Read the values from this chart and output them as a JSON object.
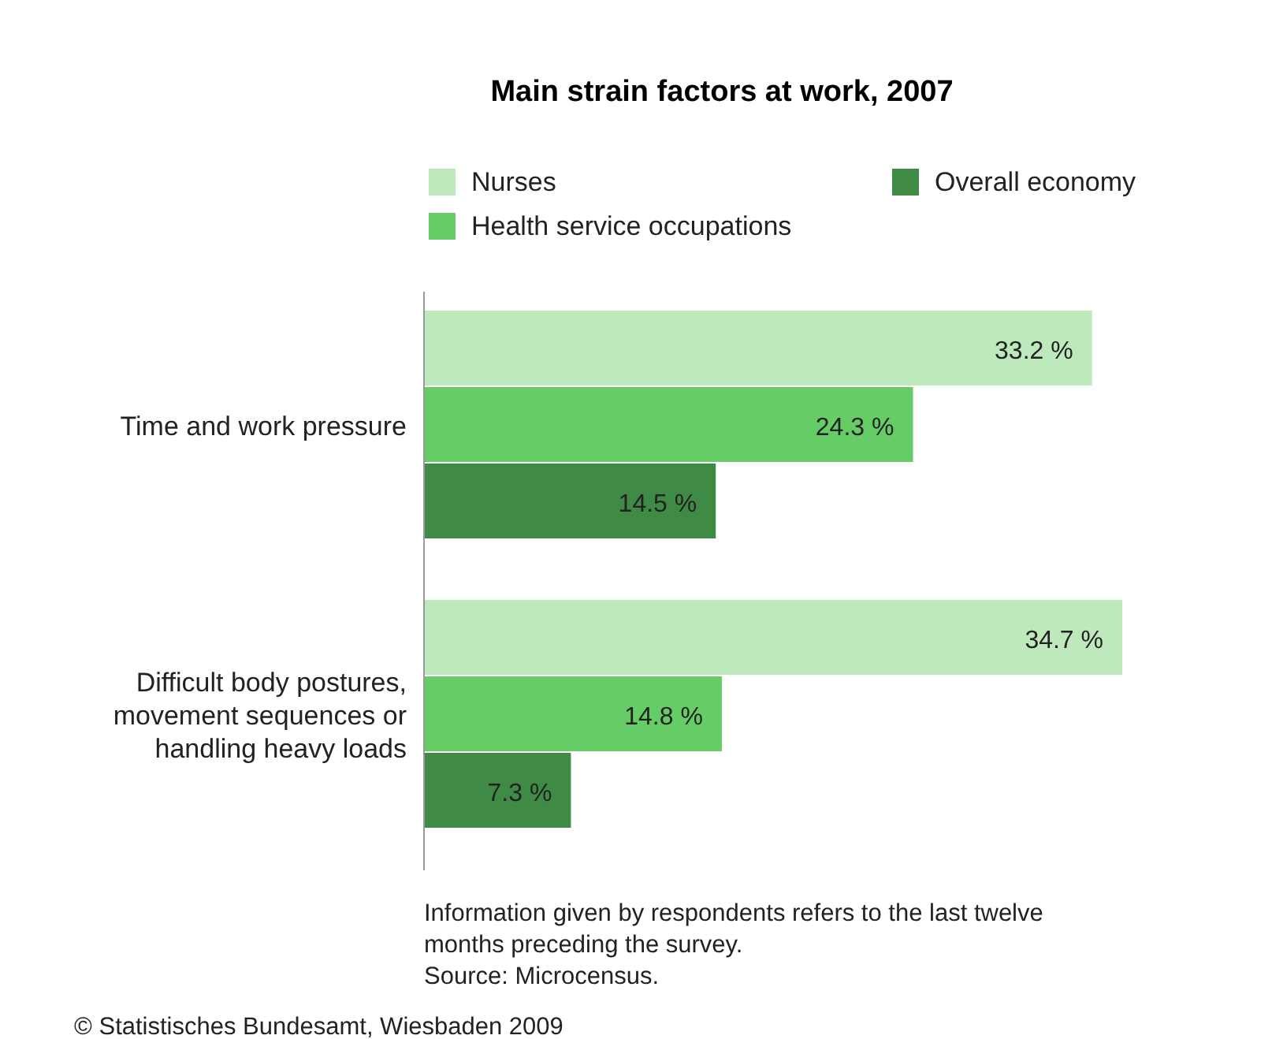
{
  "chart_data": {
    "type": "bar",
    "orientation": "horizontal",
    "title": "Main strain factors at work, 2007",
    "categories": [
      "Time and work pressure",
      "Difficult body postures, movement sequences or handling heavy loads"
    ],
    "series": [
      {
        "name": "Nurses",
        "color": "#bde9bc",
        "values": [
          33.2,
          34.7
        ],
        "value_labels": [
          "33.2 %",
          "34.7 %"
        ]
      },
      {
        "name": "Health service occupations",
        "color": "#66cc66",
        "values": [
          24.3,
          14.8
        ],
        "value_labels": [
          "24.3 %",
          "14.8 %"
        ]
      },
      {
        "name": "Overall economy",
        "color": "#3f8a45",
        "values": [
          14.5,
          7.3
        ],
        "value_labels": [
          "14.5 %",
          "7.3 %"
        ]
      }
    ],
    "tick_labels": "y",
    "legend": "top",
    "annotations": [
      "Information given by respondents refers to the last twelve months preceding the survey.",
      "Source: Microcensus.",
      "© Statistisches Bundesamt, Wiesbaden 2009"
    ]
  }
}
